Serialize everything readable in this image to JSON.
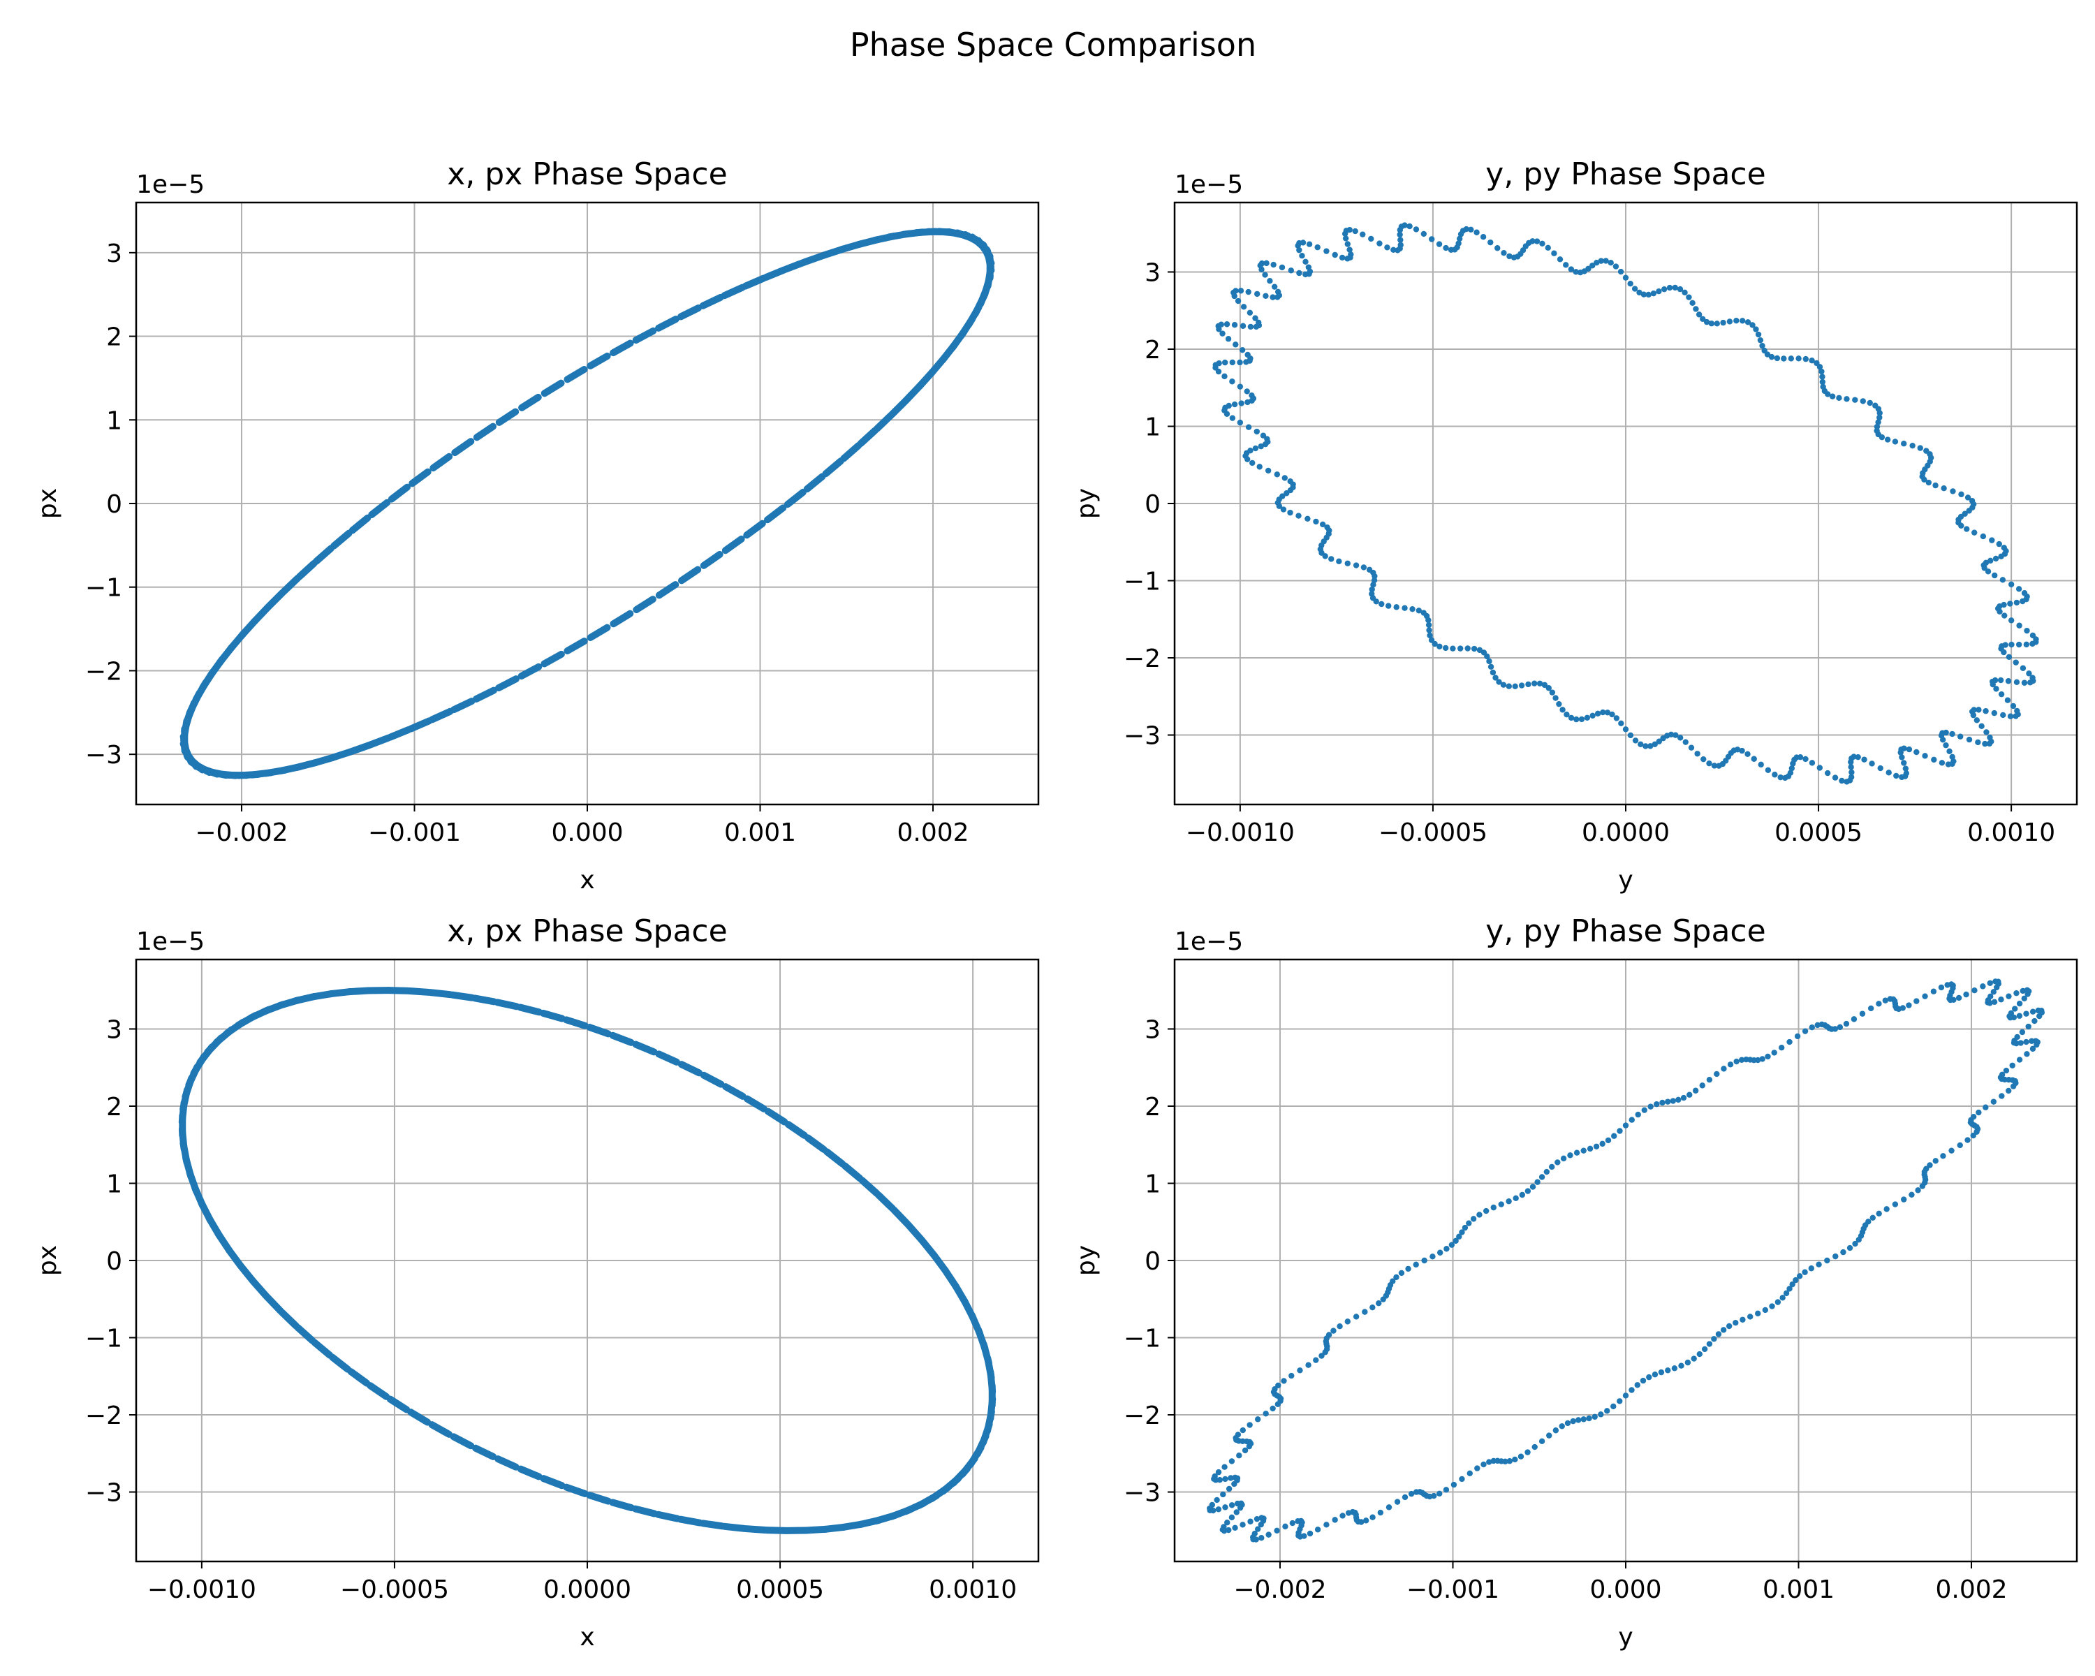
{
  "figure": {
    "suptitle": "Phase Space Comparison"
  },
  "colors": {
    "series": "#1f77b4",
    "grid": "#b0b0b0",
    "axes": "#000000"
  },
  "chart_data": [
    {
      "type": "scatter",
      "title": "x, px Phase Space",
      "xlabel": "x",
      "ylabel": "px",
      "offset_text": "1e−5",
      "grid": true,
      "xlim": [
        -0.00261,
        0.00261
      ],
      "ylim": [
        -3.6,
        3.6
      ],
      "xticks": [
        -0.002,
        -0.001,
        0.0,
        0.001,
        0.002
      ],
      "xtick_labels": [
        "−0.002",
        "−0.001",
        "0.000",
        "0.001",
        "0.002"
      ],
      "yticks": [
        -3,
        -2,
        -1,
        0,
        1,
        2,
        3
      ],
      "ytick_labels": [
        "−3",
        "−2",
        "−1",
        "0",
        "1",
        "2",
        "3"
      ],
      "ellipse": {
        "center": [
          0.0,
          0.0
        ],
        "x_amp": 0.00233,
        "y_amp": 3.25,
        "phase_deg": 30,
        "points": 110
      },
      "marker": "dashes"
    },
    {
      "type": "scatter",
      "title": "y, py Phase Space",
      "xlabel": "y",
      "ylabel": "py",
      "offset_text": "1e−5",
      "grid": true,
      "xlim": [
        -0.00117,
        0.00117
      ],
      "ylim": [
        -3.9,
        3.9
      ],
      "xticks": [
        -0.001,
        -0.0005,
        0.0,
        0.0005,
        0.001
      ],
      "xtick_labels": [
        "−0.0010",
        "−0.0005",
        "0.0000",
        "0.0005",
        "0.0010"
      ],
      "yticks": [
        -3,
        -2,
        -1,
        0,
        1,
        2,
        3
      ],
      "ytick_labels": [
        "−3",
        "−2",
        "−1",
        "0",
        "1",
        "2",
        "3"
      ],
      "ellipse": {
        "center": [
          0.0,
          0.0
        ],
        "x_amp": 0.00102,
        "y_amp": 3.45,
        "phase_deg": 122,
        "points": 520
      },
      "wiggle": {
        "amplitude": 0.045,
        "cycles": 36
      },
      "marker": "dots"
    },
    {
      "type": "scatter",
      "title": "x, px Phase Space",
      "xlabel": "x",
      "ylabel": "px",
      "offset_text": "1e−5",
      "grid": true,
      "xlim": [
        -0.00117,
        0.00117
      ],
      "ylim": [
        -3.9,
        3.9
      ],
      "xticks": [
        -0.001,
        -0.0005,
        0.0,
        0.0005,
        0.001
      ],
      "xtick_labels": [
        "−0.0010",
        "−0.0005",
        "0.0000",
        "0.0005",
        "0.0010"
      ],
      "yticks": [
        -3,
        -2,
        -1,
        0,
        1,
        2,
        3
      ],
      "ytick_labels": [
        "−3",
        "−2",
        "−1",
        "0",
        "1",
        "2",
        "3"
      ],
      "ellipse": {
        "center": [
          0.0,
          0.0
        ],
        "x_amp": 0.00105,
        "y_amp": 3.5,
        "phase_deg": 120,
        "points": 110
      },
      "marker": "dashes"
    },
    {
      "type": "scatter",
      "title": "y, py Phase Space",
      "xlabel": "y",
      "ylabel": "py",
      "offset_text": "1e−5",
      "grid": true,
      "xlim": [
        -0.00261,
        0.00261
      ],
      "ylim": [
        -3.9,
        3.9
      ],
      "xticks": [
        -0.002,
        -0.001,
        0.0,
        0.001,
        0.002
      ],
      "xtick_labels": [
        "−0.002",
        "−0.001",
        "0.000",
        "0.001",
        "0.002"
      ],
      "yticks": [
        -3,
        -2,
        -1,
        0,
        1,
        2,
        3
      ],
      "ytick_labels": [
        "−3",
        "−2",
        "−1",
        "0",
        "1",
        "2",
        "3"
      ],
      "ellipse": {
        "center": [
          0.0,
          0.0
        ],
        "x_amp": 0.00233,
        "y_amp": 3.5,
        "phase_deg": 30,
        "points": 420
      },
      "wiggle": {
        "amplitude": 0.035,
        "cycles": 30
      },
      "marker": "dots"
    }
  ]
}
